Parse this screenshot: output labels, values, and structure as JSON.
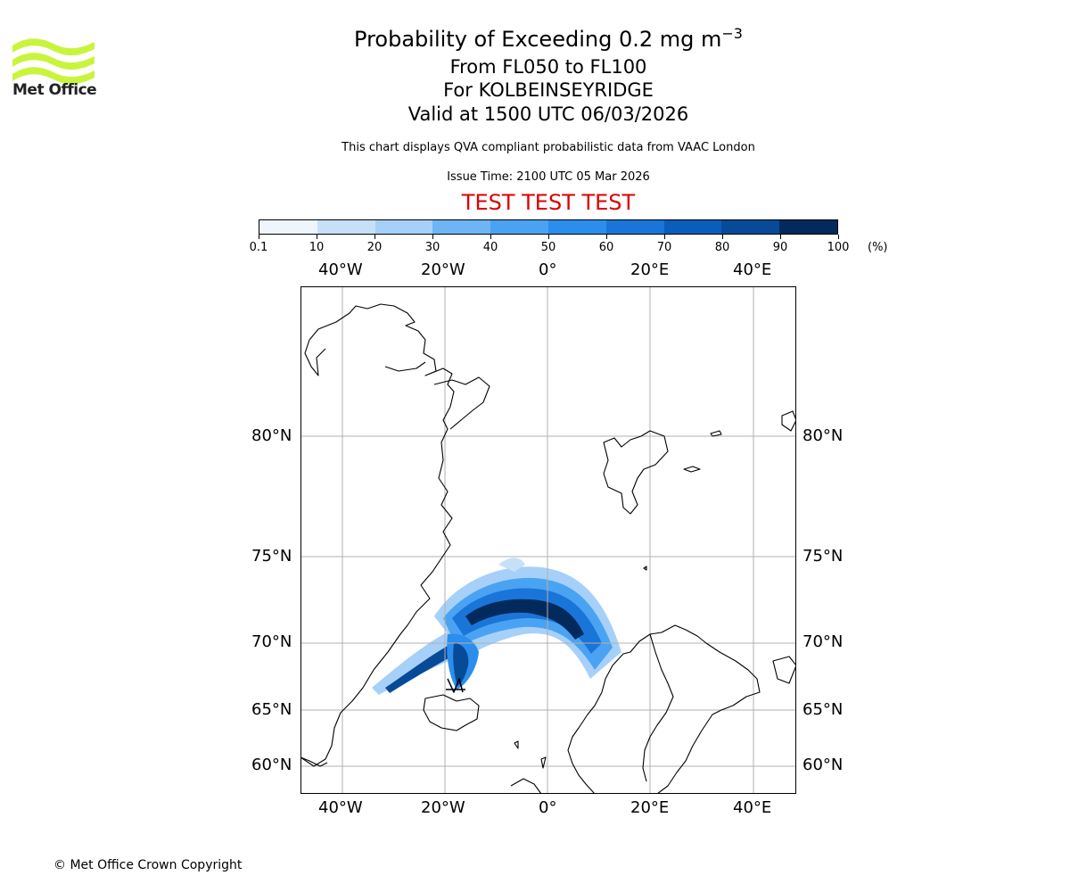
{
  "header": {
    "title_prefix": "Probability of Exceeding 0.2 mg m",
    "title_exponent": "−3",
    "line2": "From FL050 to FL100",
    "line3": "For KOLBEINSEYRIDGE",
    "line4": "Valid at 1500 UTC 06/03/2026",
    "subtitle": "This chart displays QVA compliant probabilistic data from VAAC London",
    "issue_time": "Issue Time: 2100 UTC 05 Mar 2026",
    "test_banner": "TEST TEST TEST"
  },
  "logo": {
    "text": "Met Office",
    "color": "#c8f53c"
  },
  "colorbar": {
    "ticks": [
      "0.1",
      "10",
      "20",
      "30",
      "40",
      "50",
      "60",
      "70",
      "80",
      "90",
      "100"
    ],
    "unit": "(%)",
    "colors": [
      "#eef5fd",
      "#c6e0f8",
      "#a6d0f8",
      "#6db5f5",
      "#4aa3f2",
      "#2b8eec",
      "#1a75d8",
      "#0b5dbb",
      "#074a97",
      "#032a5c"
    ]
  },
  "map": {
    "lon_labels": [
      "40°W",
      "20°W",
      "0°",
      "20°E",
      "40°E"
    ],
    "lat_labels": [
      "80°N",
      "75°N",
      "70°N",
      "65°N",
      "60°N"
    ],
    "gridline_color": "#b0b0b0"
  },
  "footer": {
    "copyright": "© Met Office Crown Copyright"
  }
}
